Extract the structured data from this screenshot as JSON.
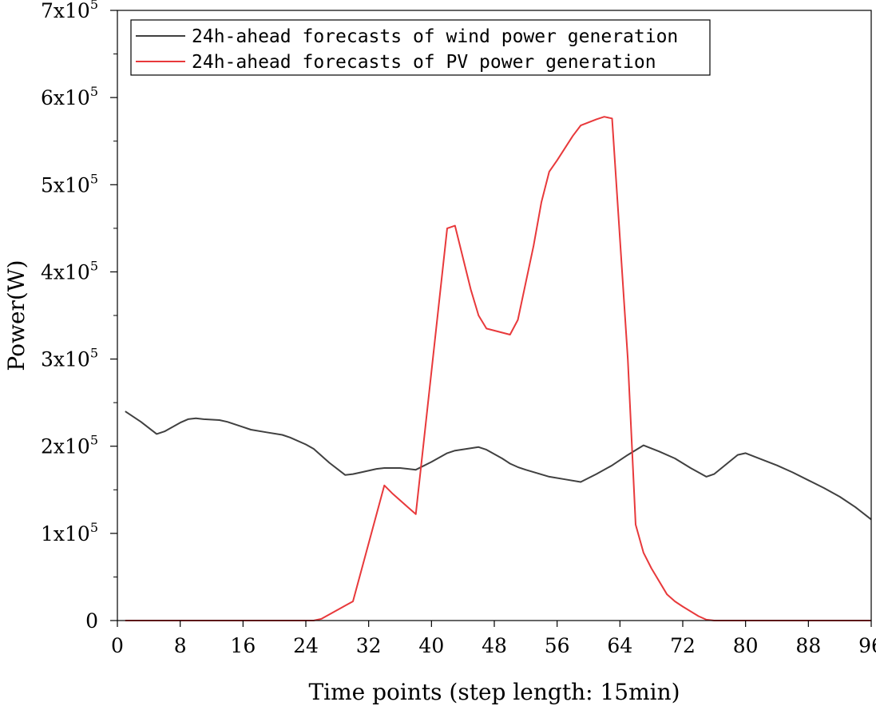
{
  "chart_data": {
    "type": "line",
    "title": "",
    "xlabel": "Time points (step length: 15min)",
    "ylabel": "Power(W)",
    "xlim": [
      0,
      96
    ],
    "ylim": [
      0,
      700000
    ],
    "x_ticks": [
      0,
      8,
      16,
      24,
      32,
      40,
      48,
      56,
      64,
      72,
      80,
      88,
      96
    ],
    "x_tick_labels": [
      "0",
      "8",
      "16",
      "24",
      "32",
      "40",
      "48",
      "56",
      "64",
      "72",
      "80",
      "88",
      "96"
    ],
    "y_ticks": [
      {
        "value": 0,
        "mantissa": "0",
        "exponent": ""
      },
      {
        "value": 100000,
        "mantissa": "1x10",
        "exponent": "5"
      },
      {
        "value": 200000,
        "mantissa": "2x10",
        "exponent": "5"
      },
      {
        "value": 300000,
        "mantissa": "3x10",
        "exponent": "5"
      },
      {
        "value": 400000,
        "mantissa": "4x10",
        "exponent": "5"
      },
      {
        "value": 500000,
        "mantissa": "5x10",
        "exponent": "5"
      },
      {
        "value": 600000,
        "mantissa": "6x10",
        "exponent": "5"
      },
      {
        "value": 700000,
        "mantissa": "7x10",
        "exponent": "5"
      }
    ],
    "y_minor_step": 50000,
    "grid": false,
    "legend_position": "top-left",
    "series": [
      {
        "name": "24h-ahead forecasts of wind power generation",
        "color": "#404040",
        "x": [
          1,
          3,
          5,
          6,
          8,
          9,
          10,
          11,
          13,
          14,
          16,
          17,
          19,
          21,
          22,
          24,
          25,
          27,
          29,
          30,
          31,
          33,
          34,
          36,
          38,
          40,
          42,
          43,
          46,
          47,
          49,
          50,
          51,
          52,
          55,
          57,
          59,
          61,
          63,
          65,
          67,
          69,
          71,
          73,
          75,
          76,
          79,
          80,
          82,
          84,
          86,
          88,
          90,
          92,
          94,
          96
        ],
        "values": [
          240000,
          228000,
          214000,
          217000,
          227000,
          231000,
          232000,
          231000,
          230000,
          228000,
          222000,
          219000,
          216000,
          213000,
          210000,
          202000,
          197000,
          181000,
          167000,
          168000,
          170000,
          174000,
          175000,
          175000,
          173000,
          182000,
          192000,
          195000,
          199000,
          196000,
          186000,
          180000,
          176000,
          173000,
          165000,
          162000,
          159000,
          168000,
          178000,
          190000,
          201000,
          194000,
          186000,
          175000,
          165000,
          168000,
          190000,
          192000,
          185000,
          178000,
          170000,
          161000,
          152000,
          142000,
          130000,
          116000
        ]
      },
      {
        "name": "24h-ahead forecasts of PV power generation",
        "color": "#e8393b",
        "x": [
          1,
          25,
          26,
          28,
          29,
          30,
          34,
          35,
          37,
          38,
          42,
          43,
          45,
          46,
          47,
          50,
          51,
          53,
          54,
          55,
          56,
          57,
          58,
          59,
          61,
          62,
          63,
          65,
          66,
          67,
          68,
          70,
          71,
          72,
          74,
          75,
          76,
          96
        ],
        "values": [
          0,
          0,
          2000,
          12000,
          17000,
          22000,
          155000,
          146000,
          130000,
          122000,
          450000,
          453000,
          380000,
          350000,
          335000,
          328000,
          345000,
          430000,
          480000,
          515000,
          528000,
          542000,
          556000,
          568000,
          575000,
          578000,
          576000,
          300000,
          110000,
          78000,
          60000,
          30000,
          22000,
          16000,
          5000,
          1000,
          0,
          0
        ]
      }
    ]
  }
}
